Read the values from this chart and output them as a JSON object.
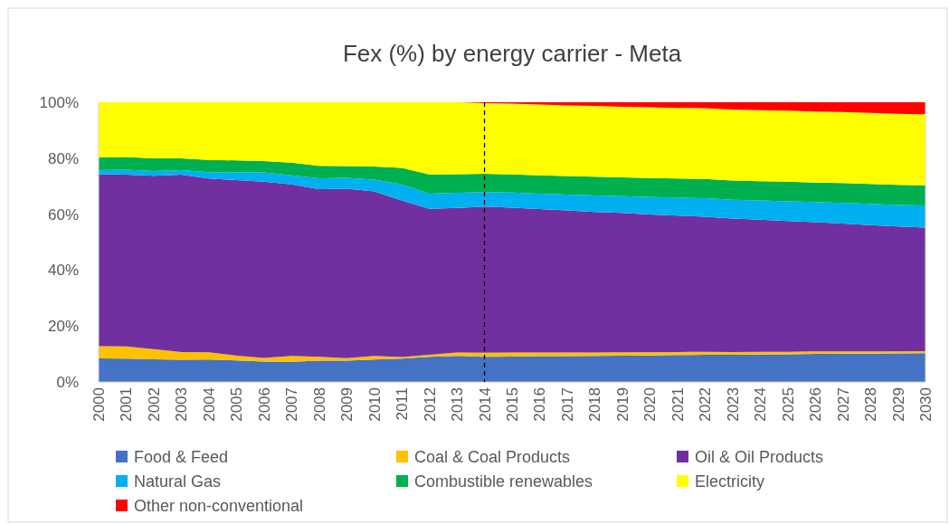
{
  "chart_data": {
    "type": "area",
    "stacked": true,
    "title": "Fex (%) by energy carrier - Meta",
    "categories": [
      "2000",
      "2001",
      "2002",
      "2003",
      "2004",
      "2005",
      "2006",
      "2007",
      "2008",
      "2009",
      "2010",
      "2011",
      "2012",
      "2013",
      "2014",
      "2015",
      "2016",
      "2017",
      "2018",
      "2019",
      "2020",
      "2021",
      "2022",
      "2023",
      "2024",
      "2025",
      "2026",
      "2027",
      "2028",
      "2029",
      "2030"
    ],
    "ylim": [
      0,
      100
    ],
    "yticks": [
      {
        "value": 0,
        "label": "0%"
      },
      {
        "value": 20,
        "label": "20%"
      },
      {
        "value": 40,
        "label": "40%"
      },
      {
        "value": 60,
        "label": "60%"
      },
      {
        "value": 80,
        "label": "80%"
      },
      {
        "value": 100,
        "label": "100%"
      }
    ],
    "grid": false,
    "legend": "bottom",
    "ref_lines": [
      {
        "axis": "x",
        "value": "2014",
        "color": "#000000",
        "line_style": "dashed"
      }
    ],
    "series": [
      {
        "name": "Food & Feed",
        "color": "#4472c4",
        "values": [
          8.4,
          8.3,
          8.1,
          7.9,
          8.0,
          7.7,
          7.3,
          7.2,
          7.6,
          7.6,
          8.0,
          8.3,
          9.0,
          9.3,
          9.0,
          9.1,
          9.2,
          9.2,
          9.3,
          9.4,
          9.5,
          9.6,
          9.7,
          9.7,
          9.8,
          9.9,
          10.0,
          10.1,
          10.1,
          10.2,
          10.3
        ]
      },
      {
        "name": "Coal & Coal Products",
        "color": "#ffc000",
        "values": [
          4.4,
          4.4,
          3.6,
          2.8,
          2.6,
          1.7,
          1.3,
          2.1,
          1.4,
          0.9,
          1.3,
          0.6,
          0.7,
          1.2,
          1.4,
          1.4,
          1.3,
          1.3,
          1.2,
          1.2,
          1.1,
          1.1,
          1.1,
          1.0,
          1.0,
          0.9,
          0.9,
          0.8,
          0.8,
          0.7,
          0.7
        ]
      },
      {
        "name": "Oil & Oil Products",
        "color": "#7030a0",
        "values": [
          61.5,
          61.4,
          62.0,
          63.4,
          62.1,
          62.8,
          63.0,
          61.3,
          59.9,
          60.6,
          58.8,
          56.0,
          52.2,
          51.7,
          52.3,
          51.8,
          51.3,
          50.8,
          50.3,
          49.8,
          49.3,
          48.8,
          48.3,
          47.7,
          47.2,
          46.7,
          46.2,
          45.7,
          45.2,
          44.7,
          44.2
        ]
      },
      {
        "name": "Natural Gas",
        "color": "#00b0f0",
        "values": [
          1.4,
          1.8,
          1.7,
          1.6,
          2.3,
          2.7,
          3.3,
          3.3,
          3.9,
          3.9,
          4.2,
          5.7,
          5.4,
          5.4,
          5.2,
          5.4,
          5.5,
          5.7,
          5.9,
          6.0,
          6.2,
          6.4,
          6.6,
          6.7,
          6.9,
          7.1,
          7.2,
          7.4,
          7.6,
          7.7,
          7.9
        ]
      },
      {
        "name": "Combustible renewables",
        "color": "#00b050",
        "values": [
          4.6,
          4.5,
          4.5,
          4.2,
          4.4,
          4.3,
          4.1,
          4.5,
          4.5,
          4.2,
          4.7,
          5.9,
          6.9,
          6.7,
          6.5,
          6.5,
          6.6,
          6.6,
          6.7,
          6.7,
          6.8,
          6.8,
          6.9,
          6.9,
          6.9,
          7.0,
          7.0,
          7.1,
          7.1,
          7.2,
          7.2
        ]
      },
      {
        "name": "Electricity",
        "color": "#ffff00",
        "values": [
          19.7,
          19.6,
          20.1,
          20.1,
          20.6,
          20.8,
          21.0,
          21.6,
          22.7,
          22.8,
          23.0,
          23.5,
          25.8,
          25.7,
          25.3,
          25.3,
          25.3,
          25.3,
          25.3,
          25.3,
          25.3,
          25.3,
          25.3,
          25.4,
          25.4,
          25.4,
          25.4,
          25.4,
          25.4,
          25.4,
          25.4
        ]
      },
      {
        "name": "Other non-conventional",
        "color": "#ff0000",
        "values": [
          0,
          0,
          0,
          0,
          0,
          0,
          0,
          0,
          0,
          0,
          0,
          0,
          0,
          0,
          0.3,
          0.5,
          0.8,
          1.1,
          1.3,
          1.6,
          1.8,
          2.0,
          2.1,
          2.6,
          2.8,
          3.0,
          3.3,
          3.5,
          3.8,
          4.1,
          4.3
        ]
      }
    ]
  }
}
